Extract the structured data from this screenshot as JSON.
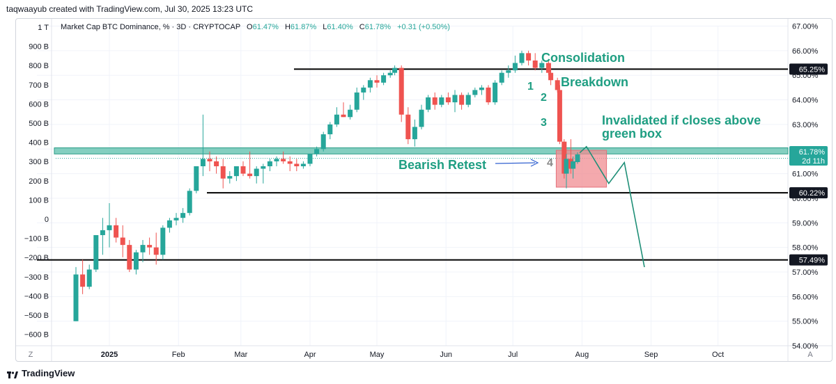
{
  "header": {
    "caption": "taqwaayub created with TradingView.com, Jul 30, 2025 13:23 UTC"
  },
  "brand": {
    "name": "TradingView"
  },
  "legend": {
    "title": "Market Cap BTC Dominance, % · 3D · CRYPTOCAP",
    "o_label": "O",
    "o_value": "61.47%",
    "h_label": "H",
    "h_value": "61.87%",
    "l_label": "L",
    "l_value": "61.40%",
    "c_label": "C",
    "c_value": "61.78%",
    "change": "+0.31 (+0.50%)"
  },
  "colors": {
    "up": "#26a69a",
    "down": "#ef5350",
    "accent_text": "#1e9e82",
    "zone": "#5bbfab",
    "box": "#f08c91",
    "arrow": "#3060d0"
  },
  "chart_data": {
    "type": "candlestick",
    "title": "Market Cap BTC Dominance, % · 3D · CRYPTOCAP",
    "y_right_ticks": [
      "67.00%",
      "66.00%",
      "65.00%",
      "64.00%",
      "63.00%",
      "62.00%",
      "61.00%",
      "60.00%",
      "59.00%",
      "58.00%",
      "57.00%",
      "56.00%",
      "55.00%",
      "54.00%"
    ],
    "y_right_range": [
      54.0,
      67.0
    ],
    "y_left_ticks": [
      "1 T",
      "900 B",
      "800 B",
      "700 B",
      "600 B",
      "500 B",
      "400 B",
      "300 B",
      "200 B",
      "100 B",
      "0",
      "−100 B",
      "−200 B",
      "−300 B",
      "−400 B",
      "−500 B",
      "−600 B"
    ],
    "x_ticks": [
      "2025",
      "Feb",
      "Mar",
      "Apr",
      "May",
      "Jun",
      "Jul",
      "Aug",
      "Sep",
      "Oct"
    ],
    "candles": [
      {
        "date": "2024-12-17",
        "o": 55.0,
        "h": 57.2,
        "l": 55.0,
        "c": 56.9
      },
      {
        "date": "2024-12-20",
        "o": 56.9,
        "h": 57.5,
        "l": 56.1,
        "c": 56.4
      },
      {
        "date": "2024-12-23",
        "o": 56.4,
        "h": 57.3,
        "l": 56.3,
        "c": 57.1
      },
      {
        "date": "2024-12-26",
        "o": 57.1,
        "h": 58.5,
        "l": 57.0,
        "c": 58.5
      },
      {
        "date": "2024-12-29",
        "o": 58.5,
        "h": 59.2,
        "l": 57.7,
        "c": 58.7
      },
      {
        "date": "2025-01-01",
        "o": 58.7,
        "h": 59.8,
        "l": 58.0,
        "c": 58.9
      },
      {
        "date": "2025-01-04",
        "o": 58.9,
        "h": 59.2,
        "l": 58.2,
        "c": 58.4
      },
      {
        "date": "2025-01-07",
        "o": 58.4,
        "h": 58.9,
        "l": 57.6,
        "c": 58.1
      },
      {
        "date": "2025-01-10",
        "o": 58.1,
        "h": 58.3,
        "l": 57.0,
        "c": 57.1
      },
      {
        "date": "2025-01-13",
        "o": 57.1,
        "h": 57.9,
        "l": 56.9,
        "c": 57.8
      },
      {
        "date": "2025-01-16",
        "o": 57.8,
        "h": 58.3,
        "l": 57.4,
        "c": 58.1
      },
      {
        "date": "2025-01-19",
        "o": 58.1,
        "h": 58.4,
        "l": 57.7,
        "c": 58.0
      },
      {
        "date": "2025-01-22",
        "o": 58.0,
        "h": 58.6,
        "l": 57.3,
        "c": 57.7
      },
      {
        "date": "2025-01-25",
        "o": 57.7,
        "h": 58.9,
        "l": 57.5,
        "c": 58.8
      },
      {
        "date": "2025-01-28",
        "o": 58.8,
        "h": 59.2,
        "l": 58.6,
        "c": 59.1
      },
      {
        "date": "2025-01-31",
        "o": 59.1,
        "h": 59.4,
        "l": 58.9,
        "c": 59.2
      },
      {
        "date": "2025-02-03",
        "o": 59.2,
        "h": 59.6,
        "l": 59.0,
        "c": 59.4
      },
      {
        "date": "2025-02-06",
        "o": 59.4,
        "h": 60.4,
        "l": 59.3,
        "c": 60.3
      },
      {
        "date": "2025-02-09",
        "o": 60.3,
        "h": 61.3,
        "l": 60.2,
        "c": 61.3
      },
      {
        "date": "2025-02-12",
        "o": 61.3,
        "h": 63.4,
        "l": 60.9,
        "c": 61.6
      },
      {
        "date": "2025-02-15",
        "o": 61.6,
        "h": 61.9,
        "l": 61.1,
        "c": 61.5
      },
      {
        "date": "2025-02-18",
        "o": 61.5,
        "h": 61.7,
        "l": 61.0,
        "c": 61.3
      },
      {
        "date": "2025-02-21",
        "o": 61.3,
        "h": 61.6,
        "l": 60.4,
        "c": 60.8
      },
      {
        "date": "2025-02-24",
        "o": 60.8,
        "h": 61.1,
        "l": 60.6,
        "c": 60.9
      },
      {
        "date": "2025-02-27",
        "o": 60.9,
        "h": 61.3,
        "l": 60.7,
        "c": 61.3
      },
      {
        "date": "2025-03-02",
        "o": 61.3,
        "h": 61.5,
        "l": 60.9,
        "c": 61.0
      },
      {
        "date": "2025-03-05",
        "o": 61.0,
        "h": 61.9,
        "l": 60.8,
        "c": 60.9
      },
      {
        "date": "2025-03-08",
        "o": 60.9,
        "h": 61.3,
        "l": 60.6,
        "c": 61.2
      },
      {
        "date": "2025-03-11",
        "o": 61.2,
        "h": 61.4,
        "l": 60.6,
        "c": 61.3
      },
      {
        "date": "2025-03-14",
        "o": 61.3,
        "h": 61.6,
        "l": 61.1,
        "c": 61.5
      },
      {
        "date": "2025-03-17",
        "o": 61.5,
        "h": 61.7,
        "l": 61.3,
        "c": 61.6
      },
      {
        "date": "2025-03-20",
        "o": 61.6,
        "h": 61.9,
        "l": 61.4,
        "c": 61.5
      },
      {
        "date": "2025-03-23",
        "o": 61.5,
        "h": 61.7,
        "l": 61.1,
        "c": 61.4
      },
      {
        "date": "2025-03-26",
        "o": 61.4,
        "h": 61.6,
        "l": 61.1,
        "c": 61.3
      },
      {
        "date": "2025-03-29",
        "o": 61.3,
        "h": 61.5,
        "l": 61.2,
        "c": 61.4
      },
      {
        "date": "2025-04-01",
        "o": 61.4,
        "h": 61.8,
        "l": 61.3,
        "c": 61.8
      },
      {
        "date": "2025-04-04",
        "o": 61.8,
        "h": 62.1,
        "l": 61.7,
        "c": 62.0
      },
      {
        "date": "2025-04-07",
        "o": 62.0,
        "h": 62.7,
        "l": 61.9,
        "c": 62.6
      },
      {
        "date": "2025-04-10",
        "o": 62.6,
        "h": 63.1,
        "l": 62.4,
        "c": 63.0
      },
      {
        "date": "2025-04-13",
        "o": 63.0,
        "h": 63.7,
        "l": 62.9,
        "c": 63.4
      },
      {
        "date": "2025-04-16",
        "o": 63.4,
        "h": 63.9,
        "l": 63.3,
        "c": 63.3
      },
      {
        "date": "2025-04-19",
        "o": 63.3,
        "h": 63.8,
        "l": 63.2,
        "c": 63.6
      },
      {
        "date": "2025-04-22",
        "o": 63.6,
        "h": 64.5,
        "l": 63.5,
        "c": 64.3
      },
      {
        "date": "2025-04-25",
        "o": 64.3,
        "h": 64.6,
        "l": 64.0,
        "c": 64.5
      },
      {
        "date": "2025-04-28",
        "o": 64.5,
        "h": 64.9,
        "l": 64.3,
        "c": 64.8
      },
      {
        "date": "2025-05-01",
        "o": 64.8,
        "h": 65.0,
        "l": 64.5,
        "c": 64.7
      },
      {
        "date": "2025-05-04",
        "o": 64.7,
        "h": 65.1,
        "l": 64.6,
        "c": 65.0
      },
      {
        "date": "2025-05-07",
        "o": 65.0,
        "h": 65.2,
        "l": 64.9,
        "c": 65.1
      },
      {
        "date": "2025-05-09",
        "o": 65.1,
        "h": 65.4,
        "l": 65.0,
        "c": 65.3
      },
      {
        "date": "2025-05-12",
        "o": 65.3,
        "h": 65.4,
        "l": 63.1,
        "c": 63.4
      },
      {
        "date": "2025-05-15",
        "o": 63.4,
        "h": 63.7,
        "l": 62.2,
        "c": 62.4
      },
      {
        "date": "2025-05-18",
        "o": 62.4,
        "h": 63.2,
        "l": 62.1,
        "c": 62.9
      },
      {
        "date": "2025-05-21",
        "o": 62.9,
        "h": 63.8,
        "l": 62.8,
        "c": 63.6
      },
      {
        "date": "2025-05-24",
        "o": 63.6,
        "h": 64.2,
        "l": 63.5,
        "c": 64.1
      },
      {
        "date": "2025-05-27",
        "o": 64.1,
        "h": 64.3,
        "l": 63.6,
        "c": 63.8
      },
      {
        "date": "2025-05-30",
        "o": 63.8,
        "h": 64.2,
        "l": 63.7,
        "c": 64.1
      },
      {
        "date": "2025-06-02",
        "o": 64.1,
        "h": 64.3,
        "l": 63.8,
        "c": 63.9
      },
      {
        "date": "2025-06-05",
        "o": 63.9,
        "h": 64.4,
        "l": 63.5,
        "c": 64.2
      },
      {
        "date": "2025-06-08",
        "o": 64.2,
        "h": 64.3,
        "l": 63.6,
        "c": 63.8
      },
      {
        "date": "2025-06-11",
        "o": 63.8,
        "h": 64.3,
        "l": 63.7,
        "c": 64.2
      },
      {
        "date": "2025-06-14",
        "o": 64.2,
        "h": 64.5,
        "l": 64.1,
        "c": 64.4
      },
      {
        "date": "2025-06-17",
        "o": 64.4,
        "h": 64.6,
        "l": 64.2,
        "c": 64.5
      },
      {
        "date": "2025-06-20",
        "o": 64.5,
        "h": 64.6,
        "l": 63.8,
        "c": 63.9
      },
      {
        "date": "2025-06-23",
        "o": 63.9,
        "h": 64.8,
        "l": 63.8,
        "c": 64.7
      },
      {
        "date": "2025-06-26",
        "o": 64.7,
        "h": 65.2,
        "l": 64.6,
        "c": 65.1
      },
      {
        "date": "2025-06-29",
        "o": 65.1,
        "h": 65.4,
        "l": 64.9,
        "c": 65.2
      },
      {
        "date": "2025-07-02",
        "o": 65.2,
        "h": 65.8,
        "l": 65.1,
        "c": 65.5
      },
      {
        "date": "2025-07-05",
        "o": 65.5,
        "h": 66.0,
        "l": 65.4,
        "c": 65.9
      },
      {
        "date": "2025-07-08",
        "o": 65.9,
        "h": 66.0,
        "l": 65.4,
        "c": 65.6
      },
      {
        "date": "2025-07-11",
        "o": 65.6,
        "h": 65.9,
        "l": 65.2,
        "c": 65.3
      },
      {
        "date": "2025-07-14",
        "o": 65.3,
        "h": 65.6,
        "l": 65.1,
        "c": 65.5
      },
      {
        "date": "2025-07-17",
        "o": 65.5,
        "h": 65.6,
        "l": 65.0,
        "c": 65.1
      },
      {
        "date": "2025-07-18",
        "o": 65.1,
        "h": 65.3,
        "l": 64.6,
        "c": 64.8
      },
      {
        "date": "2025-07-21",
        "o": 64.8,
        "h": 64.9,
        "l": 64.3,
        "c": 64.4
      },
      {
        "date": "2025-07-22",
        "o": 64.4,
        "h": 64.6,
        "l": 62.2,
        "c": 62.3
      },
      {
        "date": "2025-07-24",
        "o": 62.3,
        "h": 62.4,
        "l": 60.8,
        "c": 61.0
      },
      {
        "date": "2025-07-25",
        "o": 61.0,
        "h": 61.8,
        "l": 60.4,
        "c": 61.6
      },
      {
        "date": "2025-07-27",
        "o": 61.6,
        "h": 62.4,
        "l": 61.0,
        "c": 61.2
      },
      {
        "date": "2025-07-28",
        "o": 61.2,
        "h": 61.7,
        "l": 60.8,
        "c": 61.5
      },
      {
        "date": "2025-07-30",
        "o": 61.47,
        "h": 61.87,
        "l": 61.4,
        "c": 61.78
      }
    ],
    "levels": [
      {
        "value": 65.25,
        "label": "65.25%"
      },
      {
        "value": 60.22,
        "label": "60.22%"
      },
      {
        "value": 57.49,
        "label": "57.49%"
      }
    ],
    "last_price": {
      "value": 61.78,
      "label": "61.78%",
      "countdown": "2d 11h"
    },
    "zone": {
      "from": 61.8,
      "to": 62.05
    },
    "box": {
      "from": 60.45,
      "to": 61.95,
      "x_start": "2025-07-22",
      "x_end": "2025-08-12"
    },
    "projection": [
      {
        "date": "2025-07-31",
        "value": 61.85
      },
      {
        "date": "2025-08-03",
        "value": 62.1
      },
      {
        "date": "2025-08-13",
        "value": 60.6
      },
      {
        "date": "2025-08-20",
        "value": 61.45
      },
      {
        "date": "2025-08-29",
        "value": 57.2
      }
    ],
    "annotations": {
      "consolidation": "Consolidation",
      "breakdown": "Breakdown",
      "invalidated": [
        "Invalidated if closes above",
        "green box"
      ],
      "bearish_retest": "Bearish Retest",
      "n1": "1",
      "n2": "2",
      "n3": "3",
      "n4": "4"
    },
    "bottom_left": "Z",
    "bottom_right": "A"
  }
}
